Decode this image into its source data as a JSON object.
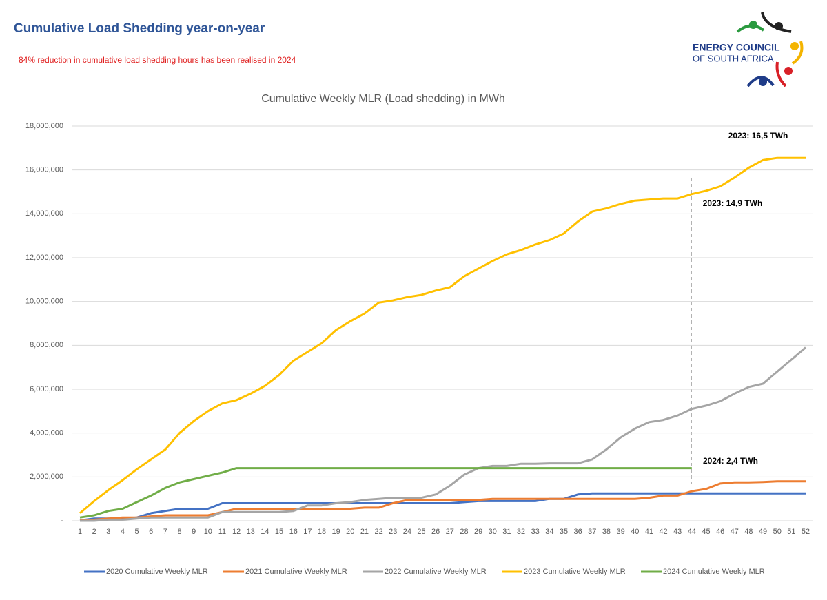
{
  "header": {
    "title": "Cumulative Load Shedding year-on-year",
    "subtitle": "84% reduction in cumulative load shedding hours has been realised in 2024"
  },
  "logo": {
    "line1": "ENERGY COUNCIL",
    "line2": "OF SOUTH AFRICA"
  },
  "chart_data": {
    "type": "line",
    "title": "Cumulative Weekly MLR (Load shedding) in MWh",
    "categories": [
      "1",
      "2",
      "3",
      "4",
      "5",
      "6",
      "7",
      "8",
      "9",
      "10",
      "11",
      "12",
      "13",
      "14",
      "15",
      "16",
      "17",
      "18",
      "19",
      "20",
      "21",
      "22",
      "23",
      "24",
      "25",
      "26",
      "27",
      "28",
      "29",
      "30",
      "31",
      "32",
      "33",
      "34",
      "35",
      "36",
      "37",
      "38",
      "39",
      "40",
      "41",
      "42",
      "43",
      "44",
      "45",
      "46",
      "47",
      "48",
      "49",
      "50",
      "51",
      "52"
    ],
    "ylim": [
      0,
      18000000
    ],
    "yticks": [
      {
        "value": 0,
        "label": "-"
      },
      {
        "value": 2000000,
        "label": "2,000,000"
      },
      {
        "value": 4000000,
        "label": "4,000,000"
      },
      {
        "value": 6000000,
        "label": "6,000,000"
      },
      {
        "value": 8000000,
        "label": "8,000,000"
      },
      {
        "value": 10000000,
        "label": "10,000,000"
      },
      {
        "value": 12000000,
        "label": "12,000,000"
      },
      {
        "value": 14000000,
        "label": "14,000,000"
      },
      {
        "value": 16000000,
        "label": "16,000,000"
      },
      {
        "value": 18000000,
        "label": "18,000,000"
      }
    ],
    "grid": true,
    "legend": "bottom",
    "series": [
      {
        "name": "2020 Cumulative Weekly MLR",
        "color": "#4472c4",
        "values": [
          20000,
          100000,
          100000,
          100000,
          150000,
          350000,
          450000,
          550000,
          550000,
          550000,
          800000,
          800000,
          800000,
          800000,
          800000,
          800000,
          800000,
          800000,
          800000,
          800000,
          800000,
          800000,
          800000,
          800000,
          800000,
          800000,
          800000,
          850000,
          900000,
          900000,
          900000,
          900000,
          900000,
          1000000,
          1000000,
          1200000,
          1250000,
          1250000,
          1250000,
          1250000,
          1250000,
          1250000,
          1250000,
          1250000,
          1250000,
          1250000,
          1250000,
          1250000,
          1250000,
          1250000,
          1250000,
          1250000
        ]
      },
      {
        "name": "2021 Cumulative Weekly MLR",
        "color": "#ed7d31",
        "values": [
          20000,
          50000,
          100000,
          150000,
          150000,
          200000,
          250000,
          250000,
          250000,
          250000,
          400000,
          550000,
          550000,
          550000,
          550000,
          550000,
          550000,
          550000,
          550000,
          550000,
          600000,
          600000,
          800000,
          950000,
          950000,
          950000,
          950000,
          950000,
          950000,
          1000000,
          1000000,
          1000000,
          1000000,
          1000000,
          1000000,
          1000000,
          1000000,
          1000000,
          1000000,
          1000000,
          1050000,
          1150000,
          1150000,
          1350000,
          1450000,
          1700000,
          1750000,
          1750000,
          1770000,
          1800000,
          1800000,
          1800000
        ]
      },
      {
        "name": "2022 Cumulative Weekly MLR",
        "color": "#a5a5a5",
        "values": [
          0,
          0,
          50000,
          50000,
          100000,
          150000,
          150000,
          150000,
          150000,
          150000,
          400000,
          400000,
          400000,
          400000,
          400000,
          450000,
          700000,
          700000,
          800000,
          850000,
          950000,
          1000000,
          1050000,
          1050000,
          1050000,
          1200000,
          1600000,
          2100000,
          2400000,
          2500000,
          2500000,
          2600000,
          2600000,
          2620000,
          2620000,
          2620000,
          2800000,
          3250000,
          3800000,
          4200000,
          4500000,
          4600000,
          4800000,
          5100000,
          5250000,
          5450000,
          5800000,
          6100000,
          6250000,
          6800000,
          7350000,
          7900000
        ]
      },
      {
        "name": "2023 Cumulative Weekly MLR",
        "color": "#ffc000",
        "values": [
          350000,
          900000,
          1400000,
          1850000,
          2350000,
          2800000,
          3250000,
          4000000,
          4550000,
          5000000,
          5350000,
          5500000,
          5800000,
          6150000,
          6650000,
          7300000,
          7700000,
          8100000,
          8700000,
          9100000,
          9450000,
          9950000,
          10050000,
          10200000,
          10300000,
          10500000,
          10650000,
          11150000,
          11500000,
          11850000,
          12150000,
          12350000,
          12600000,
          12800000,
          13100000,
          13650000,
          14100000,
          14250000,
          14450000,
          14600000,
          14650000,
          14700000,
          14700000,
          14900000,
          15050000,
          15250000,
          15650000,
          16100000,
          16450000,
          16550000,
          16550000,
          16550000
        ]
      },
      {
        "name": "2024 Cumulative Weekly MLR",
        "color": "#70ad47",
        "values": [
          150000,
          250000,
          450000,
          550000,
          850000,
          1150000,
          1500000,
          1750000,
          1900000,
          2050000,
          2200000,
          2400000,
          2400000,
          2400000,
          2400000,
          2400000,
          2400000,
          2400000,
          2400000,
          2400000,
          2400000,
          2400000,
          2400000,
          2400000,
          2400000,
          2400000,
          2400000,
          2400000,
          2400000,
          2400000,
          2400000,
          2400000,
          2400000,
          2400000,
          2400000,
          2400000,
          2400000,
          2400000,
          2400000,
          2400000,
          2400000,
          2400000,
          2400000,
          2400000,
          null,
          null,
          null,
          null,
          null,
          null,
          null,
          null
        ]
      }
    ],
    "annotations": [
      "2023: 16,5 TWh",
      "2023: 14,9 TWh",
      "2024: 2,4 TWh"
    ]
  }
}
